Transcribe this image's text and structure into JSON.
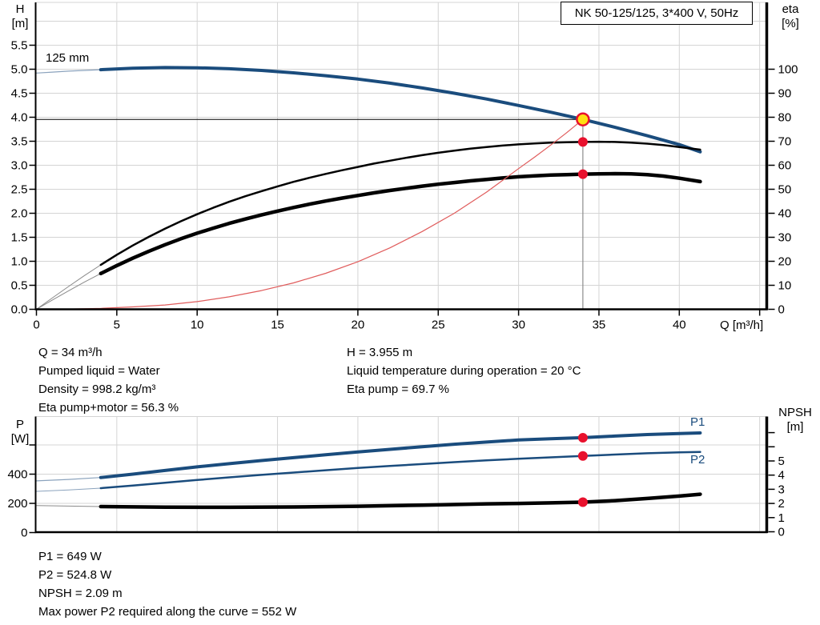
{
  "colors": {
    "blue": "#1a4c7d",
    "blue_thin": "#8ba3bd",
    "black": "#000000",
    "black_thin": "#8a8a8a",
    "red": "#e05c5c",
    "red_thin": "#e05c5c",
    "dot_red": "#e8112d",
    "dot_yellow": "#ffe012",
    "grid": "#d4d4d4",
    "crosshair_v": "#8c8c8c",
    "crosshair_h": "#000000"
  },
  "info_top_left": [
    "Q = 34 m³/h",
    "Pumped liquid = Water",
    "Density = 998.2 kg/m³",
    "Eta pump+motor = 56.3 %"
  ],
  "info_top_right": [
    "H = 3.955 m",
    "Liquid temperature during operation = 20 °C",
    "Eta pump = 69.7 %"
  ],
  "info_bottom": [
    "P1 = 649 W",
    "P2 = 524.8 W",
    "NPSH = 2.09 m",
    "Max power P2 required along the curve = 552 W"
  ],
  "chart_data": [
    {
      "type": "line",
      "title": "NK 50-125/125, 3*400 V, 50Hz",
      "x": {
        "label": "Q [m³/h]",
        "min": 0,
        "max": 45.4,
        "ticks": [
          [
            0,
            "0"
          ],
          [
            5,
            "5"
          ],
          [
            10,
            "10"
          ],
          [
            15,
            "15"
          ],
          [
            20,
            "20"
          ],
          [
            25,
            "25"
          ],
          [
            30,
            "30"
          ],
          [
            35,
            "35"
          ],
          [
            40,
            "40"
          ],
          [
            45,
            ""
          ]
        ],
        "grid": [
          5,
          10,
          15,
          20,
          25,
          30,
          35,
          40,
          45
        ]
      },
      "y_left": {
        "label_1": "H",
        "label_2": "[m]",
        "min": 0,
        "max": 6.39,
        "ticks": [
          [
            0,
            "0.0"
          ],
          [
            0.5,
            "0.5"
          ],
          [
            1,
            "1.0"
          ],
          [
            1.5,
            "1.5"
          ],
          [
            2,
            "2.0"
          ],
          [
            2.5,
            "2.5"
          ],
          [
            3,
            "3.0"
          ],
          [
            3.5,
            "3.5"
          ],
          [
            4,
            "4.0"
          ],
          [
            4.5,
            "4.5"
          ],
          [
            5,
            "5.0"
          ],
          [
            5.5,
            "5.5"
          ]
        ],
        "grid": [
          0.5,
          1,
          1.5,
          2,
          2.5,
          3,
          3.5,
          4,
          4.5,
          5,
          5.5,
          6
        ]
      },
      "y_right": {
        "label_1": "eta",
        "label_2": "[%]",
        "min": 0,
        "max": 127,
        "ticks": [
          [
            0,
            "0"
          ],
          [
            10,
            "10"
          ],
          [
            20,
            "20"
          ],
          [
            30,
            "30"
          ],
          [
            40,
            "40"
          ],
          [
            50,
            "50"
          ],
          [
            60,
            "60"
          ],
          [
            70,
            "70"
          ],
          [
            80,
            "80"
          ],
          [
            90,
            "90"
          ],
          [
            100,
            "100"
          ]
        ]
      },
      "series": [
        {
          "name": "pump-curve",
          "label": "125 mm",
          "axis": "left",
          "color": "blue",
          "width": 4,
          "thin_width": 1.2,
          "split": 4,
          "points": [
            [
              0,
              4.92
            ],
            [
              1,
              4.94
            ],
            [
              2,
              4.96
            ],
            [
              3,
              4.975
            ],
            [
              4,
              4.99
            ],
            [
              6,
              5.02
            ],
            [
              8,
              5.035
            ],
            [
              10,
              5.03
            ],
            [
              12,
              5.01
            ],
            [
              14,
              4.975
            ],
            [
              16,
              4.925
            ],
            [
              18,
              4.865
            ],
            [
              20,
              4.795
            ],
            [
              22,
              4.71
            ],
            [
              24,
              4.61
            ],
            [
              26,
              4.5
            ],
            [
              28,
              4.38
            ],
            [
              30,
              4.245
            ],
            [
              32,
              4.105
            ],
            [
              34,
              3.955
            ],
            [
              36,
              3.79
            ],
            [
              38,
              3.615
            ],
            [
              40,
              3.43
            ],
            [
              41.3,
              3.28
            ]
          ]
        },
        {
          "name": "eta-pump",
          "axis": "right",
          "color": "black",
          "width": 2.5,
          "thin_width": 1,
          "split": 4,
          "points": [
            [
              0,
              0
            ],
            [
              1,
              4.8
            ],
            [
              2,
              9.5
            ],
            [
              3,
              14.1
            ],
            [
              4,
              18.5
            ],
            [
              5,
              22.7
            ],
            [
              6,
              26.6
            ],
            [
              7,
              30.2
            ],
            [
              8,
              33.6
            ],
            [
              9,
              36.7
            ],
            [
              10,
              39.6
            ],
            [
              11,
              42.3
            ],
            [
              12,
              44.8
            ],
            [
              13,
              47.1
            ],
            [
              14,
              49.2
            ],
            [
              15,
              51.2
            ],
            [
              16,
              53.1
            ],
            [
              17,
              54.8
            ],
            [
              18,
              56.4
            ],
            [
              19,
              57.9
            ],
            [
              20,
              59.3
            ],
            [
              21,
              60.7
            ],
            [
              22,
              61.9
            ],
            [
              23,
              63.1
            ],
            [
              24,
              64.2
            ],
            [
              25,
              65.2
            ],
            [
              26,
              66.1
            ],
            [
              27,
              66.9
            ],
            [
              28,
              67.6
            ],
            [
              29,
              68.2
            ],
            [
              30,
              68.7
            ],
            [
              31,
              69.1
            ],
            [
              32,
              69.4
            ],
            [
              33,
              69.6
            ],
            [
              34,
              69.7
            ],
            [
              35,
              69.8
            ],
            [
              36,
              69.7
            ],
            [
              37,
              69.4
            ],
            [
              38,
              69
            ],
            [
              39,
              68.4
            ],
            [
              40,
              67.6
            ],
            [
              41.3,
              66.5
            ]
          ]
        },
        {
          "name": "eta-pump-motor",
          "axis": "right",
          "color": "black",
          "width": 4.5,
          "thin_width": 1,
          "split": 4,
          "points": [
            [
              0,
              0
            ],
            [
              1,
              3.9
            ],
            [
              2,
              7.7
            ],
            [
              3,
              11.4
            ],
            [
              4,
              14.9
            ],
            [
              5,
              18.2
            ],
            [
              6,
              21.3
            ],
            [
              7,
              24.2
            ],
            [
              8,
              26.9
            ],
            [
              9,
              29.4
            ],
            [
              10,
              31.7
            ],
            [
              11,
              33.8
            ],
            [
              12,
              35.8
            ],
            [
              13,
              37.6
            ],
            [
              14,
              39.3
            ],
            [
              15,
              40.9
            ],
            [
              16,
              42.4
            ],
            [
              17,
              43.8
            ],
            [
              18,
              45.1
            ],
            [
              19,
              46.3
            ],
            [
              20,
              47.4
            ],
            [
              21,
              48.5
            ],
            [
              22,
              49.5
            ],
            [
              23,
              50.4
            ],
            [
              24,
              51.3
            ],
            [
              25,
              52.1
            ],
            [
              26,
              52.8
            ],
            [
              27,
              53.5
            ],
            [
              28,
              54.1
            ],
            [
              29,
              54.7
            ],
            [
              30,
              55.2
            ],
            [
              31,
              55.6
            ],
            [
              32,
              55.9
            ],
            [
              33,
              56.1
            ],
            [
              34,
              56.3
            ],
            [
              35,
              56.4
            ],
            [
              36,
              56.5
            ],
            [
              37,
              56.4
            ],
            [
              38,
              56.1
            ],
            [
              39,
              55.5
            ],
            [
              40,
              54.6
            ],
            [
              41.3,
              53.2
            ]
          ]
        },
        {
          "name": "iso-efficiency-curve",
          "axis": "left",
          "color": "red",
          "width": 1.2,
          "thin_width": 1.2,
          "split": 0,
          "points": [
            [
              0,
              0
            ],
            [
              2,
              0.005
            ],
            [
              4,
              0.02
            ],
            [
              6,
              0.05
            ],
            [
              8,
              0.09
            ],
            [
              10,
              0.16
            ],
            [
              12,
              0.26
            ],
            [
              14,
              0.39
            ],
            [
              16,
              0.55
            ],
            [
              18,
              0.75
            ],
            [
              20,
              0.99
            ],
            [
              22,
              1.28
            ],
            [
              24,
              1.62
            ],
            [
              26,
              2.0
            ],
            [
              28,
              2.44
            ],
            [
              30,
              2.93
            ],
            [
              31,
              3.17
            ],
            [
              32,
              3.42
            ],
            [
              33,
              3.68
            ],
            [
              34,
              3.955
            ]
          ]
        }
      ],
      "crosshair": {
        "h": 3.955,
        "v": 34
      },
      "duty_point": {
        "q": 34,
        "h": 3.955
      },
      "marker_dots": [
        {
          "axis": "right",
          "q": 34,
          "v": 69.7
        },
        {
          "axis": "right",
          "q": 34,
          "v": 56.3
        }
      ]
    },
    {
      "type": "line",
      "x": {
        "label": "",
        "min": 0,
        "max": 45.4,
        "ticks": [],
        "grid": [
          5,
          10,
          15,
          20,
          25,
          30,
          35,
          40,
          45
        ]
      },
      "y_left": {
        "label_1": "P",
        "label_2": "[W]",
        "min": 0,
        "max": 795,
        "ticks": [
          [
            0,
            "0"
          ],
          [
            200,
            "200"
          ],
          [
            400,
            "400"
          ],
          [
            600,
            ""
          ]
        ],
        "grid": [
          200,
          400,
          600
        ]
      },
      "y_right": {
        "label_1": "NPSH",
        "label_2": "[m]",
        "min": 0,
        "max": 8.2,
        "ticks": [
          [
            0,
            "0"
          ],
          [
            1,
            "1"
          ],
          [
            2,
            "2"
          ],
          [
            3,
            "3"
          ],
          [
            4,
            "4"
          ],
          [
            5,
            "5"
          ],
          [
            6,
            ""
          ],
          [
            7,
            ""
          ]
        ]
      },
      "series": [
        {
          "name": "p1-curve",
          "label": "P1",
          "axis": "left",
          "color": "blue",
          "width": 4,
          "thin_width": 1.2,
          "split": 4,
          "points": [
            [
              0,
              354
            ],
            [
              2,
              364
            ],
            [
              4,
              377
            ],
            [
              6,
              400
            ],
            [
              8,
              425
            ],
            [
              10,
              450
            ],
            [
              12,
              472
            ],
            [
              14,
              493
            ],
            [
              16,
              513
            ],
            [
              18,
              533
            ],
            [
              20,
              552
            ],
            [
              22,
              570
            ],
            [
              24,
              588
            ],
            [
              26,
              605
            ],
            [
              28,
              620
            ],
            [
              30,
              634
            ],
            [
              32,
              643
            ],
            [
              34,
              650
            ],
            [
              36,
              661
            ],
            [
              38,
              671
            ],
            [
              40,
              678
            ],
            [
              41.3,
              682
            ]
          ]
        },
        {
          "name": "p2-curve",
          "label": "P2",
          "axis": "left",
          "color": "blue",
          "width": 2.5,
          "thin_width": 1,
          "split": 4,
          "points": [
            [
              0,
              282
            ],
            [
              2,
              292
            ],
            [
              4,
              304
            ],
            [
              6,
              322
            ],
            [
              8,
              341
            ],
            [
              10,
              360
            ],
            [
              12,
              378
            ],
            [
              14,
              395
            ],
            [
              16,
              411
            ],
            [
              18,
              427
            ],
            [
              20,
              442
            ],
            [
              22,
              456
            ],
            [
              24,
              469
            ],
            [
              26,
              482
            ],
            [
              28,
              494
            ],
            [
              30,
              505
            ],
            [
              32,
              515
            ],
            [
              34,
              525
            ],
            [
              36,
              534
            ],
            [
              38,
              543
            ],
            [
              40,
              549
            ],
            [
              41.3,
              552
            ]
          ]
        },
        {
          "name": "npsh-curve",
          "axis": "right",
          "color": "black",
          "width": 4.5,
          "thin_width": 1,
          "split": 4,
          "points": [
            [
              0,
              1.85
            ],
            [
              4,
              1.78
            ],
            [
              8,
              1.74
            ],
            [
              12,
              1.73
            ],
            [
              16,
              1.75
            ],
            [
              20,
              1.8
            ],
            [
              24,
              1.88
            ],
            [
              28,
              1.97
            ],
            [
              30,
              2.0
            ],
            [
              32,
              2.04
            ],
            [
              34,
              2.09
            ],
            [
              36,
              2.2
            ],
            [
              38,
              2.35
            ],
            [
              40,
              2.52
            ],
            [
              41.3,
              2.65
            ]
          ]
        }
      ],
      "marker_dots": [
        {
          "axis": "left",
          "q": 34,
          "v": 649
        },
        {
          "axis": "left",
          "q": 34,
          "v": 524.8
        },
        {
          "axis": "right",
          "q": 34,
          "v": 2.09
        }
      ]
    }
  ]
}
